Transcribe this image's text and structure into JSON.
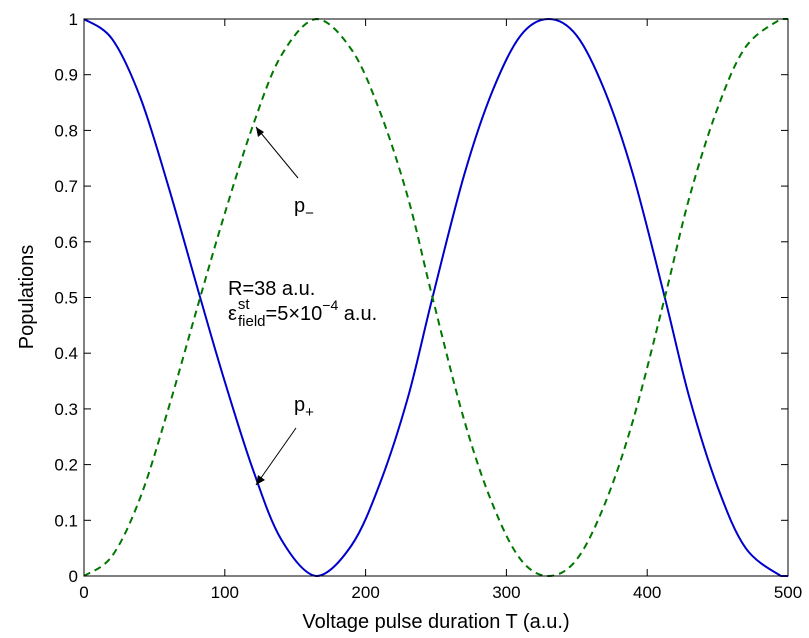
{
  "chart_data": {
    "type": "line",
    "xlabel": "Voltage pulse duration T (a.u.)",
    "ylabel": "Populations",
    "xlim": [
      0,
      500
    ],
    "ylim": [
      0,
      1
    ],
    "x_ticks": [
      "0",
      "100",
      "200",
      "300",
      "400",
      "500"
    ],
    "y_ticks": [
      "0",
      "0.1",
      "0.2",
      "0.3",
      "0.4",
      "0.5",
      "0.6",
      "0.7",
      "0.8",
      "0.9",
      "1"
    ],
    "grid": false,
    "series": [
      {
        "name": "p+",
        "style": "solid",
        "color": "#0000cc",
        "x": [
          0,
          20,
          40,
          60,
          82.5,
          100,
          120,
          140,
          165,
          190,
          210,
          230,
          247.5,
          270,
          290,
          310,
          330,
          350,
          370,
          390,
          412.5,
          430,
          450,
          470,
          495,
          500
        ],
        "y": [
          1.0,
          0.964,
          0.859,
          0.699,
          0.5,
          0.349,
          0.191,
          0.066,
          0.0,
          0.055,
          0.165,
          0.32,
          0.5,
          0.72,
          0.87,
          0.97,
          1.0,
          0.97,
          0.87,
          0.72,
          0.5,
          0.32,
          0.16,
          0.05,
          0.0,
          0.0
        ]
      },
      {
        "name": "p−",
        "style": "dashed",
        "color": "#007700",
        "x": [
          0,
          20,
          40,
          60,
          82.5,
          100,
          120,
          140,
          165,
          190,
          210,
          230,
          247.5,
          270,
          290,
          310,
          330,
          350,
          370,
          390,
          412.5,
          430,
          450,
          470,
          495,
          500
        ],
        "y": [
          0.0,
          0.036,
          0.141,
          0.301,
          0.5,
          0.651,
          0.809,
          0.934,
          1.0,
          0.945,
          0.835,
          0.68,
          0.5,
          0.28,
          0.13,
          0.03,
          0.0,
          0.03,
          0.13,
          0.28,
          0.5,
          0.68,
          0.84,
          0.95,
          1.0,
          1.0
        ]
      }
    ],
    "annotations": {
      "p_minus": {
        "base": "p",
        "sub": "−",
        "arrow_to": [
          120,
          0.82
        ]
      },
      "p_plus": {
        "base": "p",
        "sub": "+",
        "arrow_to": [
          120,
          0.16
        ]
      },
      "params_line1": "R=38 a.u.",
      "params_line2": {
        "eps": "ε",
        "sup": "st",
        "sub": "field",
        "rest": "=5×10",
        "exp": "−4",
        "unit": " a.u."
      }
    }
  }
}
